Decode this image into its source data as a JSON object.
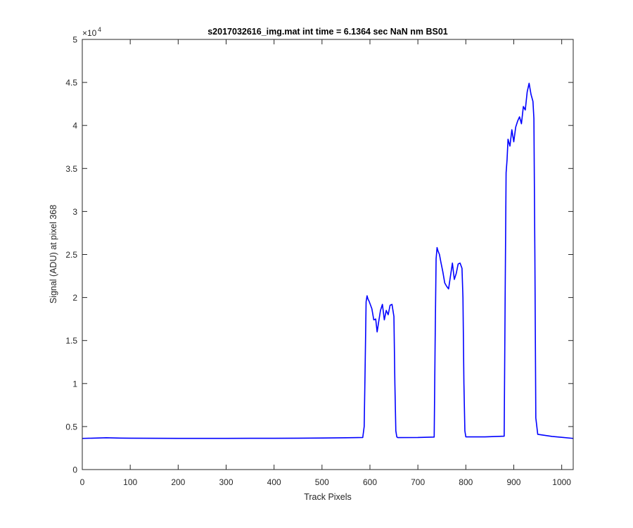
{
  "chart_data": {
    "type": "line",
    "title": "s2017032616_img.mat int time = 6.1364 sec  NaN nm BS01",
    "xlabel": "Track Pixels",
    "ylabel": "Signal (ADU) at pixel 368",
    "y_exponent_label": "×10",
    "y_exponent_power": "4",
    "xlim": [
      0,
      1024
    ],
    "ylim": [
      0,
      50000
    ],
    "x_ticks": [
      0,
      100,
      200,
      300,
      400,
      500,
      600,
      700,
      800,
      900,
      1000
    ],
    "y_ticks": [
      0,
      0.5,
      1,
      1.5,
      2,
      2.5,
      3,
      3.5,
      4,
      4.5,
      5
    ],
    "y_tick_labels": [
      "0",
      "0.5",
      "1",
      "1.5",
      "2",
      "2.5",
      "3",
      "3.5",
      "4",
      "4.5",
      "5"
    ],
    "grid": false,
    "legend": "none",
    "series": [
      {
        "color": "#0000ff",
        "x": [
          0,
          20,
          50,
          80,
          100,
          150,
          200,
          250,
          300,
          350,
          400,
          450,
          500,
          550,
          585,
          588,
          590,
          592,
          594,
          596,
          598,
          600,
          604,
          608,
          612,
          615,
          618,
          622,
          626,
          630,
          634,
          638,
          642,
          646,
          650,
          652,
          654,
          656,
          658,
          700,
          734,
          736,
          738,
          740,
          742,
          745,
          748,
          752,
          756,
          760,
          764,
          768,
          772,
          776,
          780,
          784,
          788,
          792,
          794,
          796,
          798,
          800,
          840,
          880,
          882,
          884,
          886,
          888,
          892,
          896,
          900,
          904,
          908,
          912,
          916,
          920,
          924,
          928,
          932,
          936,
          940,
          942,
          944,
          946,
          950,
          980,
          1000,
          1024
        ],
        "y": [
          3620,
          3650,
          3700,
          3660,
          3650,
          3640,
          3630,
          3630,
          3630,
          3640,
          3640,
          3650,
          3670,
          3700,
          3730,
          5000,
          12000,
          19500,
          20200,
          19800,
          19600,
          19300,
          18700,
          17400,
          17500,
          16000,
          17100,
          18500,
          19200,
          17400,
          18500,
          18000,
          19100,
          19200,
          17800,
          10000,
          4500,
          3800,
          3720,
          3730,
          3780,
          15000,
          24500,
          25800,
          25400,
          25000,
          24100,
          23000,
          21700,
          21300,
          21000,
          22500,
          24000,
          22100,
          22800,
          23900,
          24000,
          23400,
          20000,
          10000,
          4500,
          3800,
          3800,
          3880,
          20000,
          34500,
          36000,
          38400,
          37600,
          39500,
          38100,
          39800,
          40500,
          41000,
          40200,
          42200,
          41800,
          43900,
          44900,
          43600,
          42800,
          40800,
          25000,
          6000,
          4100,
          3850,
          3750,
          3620
        ]
      }
    ]
  }
}
